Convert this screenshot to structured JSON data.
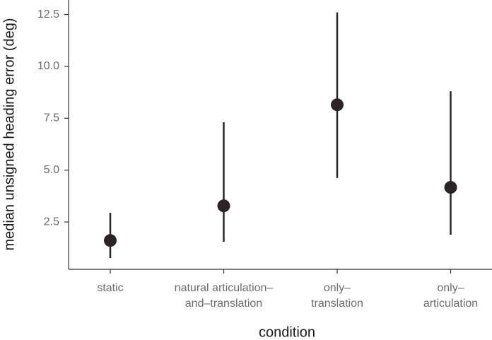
{
  "chart_data": {
    "type": "pointrange",
    "x_label": "condition",
    "y_label": "median unsigned heading error (deg)",
    "categories": [
      [
        "static"
      ],
      [
        "natural articulation–",
        "and–translation"
      ],
      [
        "only–",
        "translation"
      ],
      [
        "only–",
        "articulation"
      ]
    ],
    "values": [
      1.61,
      3.28,
      8.15,
      4.17
    ],
    "lower": [
      0.76,
      1.55,
      4.62,
      1.89
    ],
    "upper": [
      2.94,
      7.31,
      12.6,
      8.8
    ],
    "color": "#2a2327",
    "ylim": [
      0.22,
      13.2
    ],
    "yticks": [
      2.5,
      {
        "value": 5,
        "label": "5.0"
      },
      7.5,
      {
        "value": 10,
        "label": "10.0"
      },
      12.5
    ]
  }
}
